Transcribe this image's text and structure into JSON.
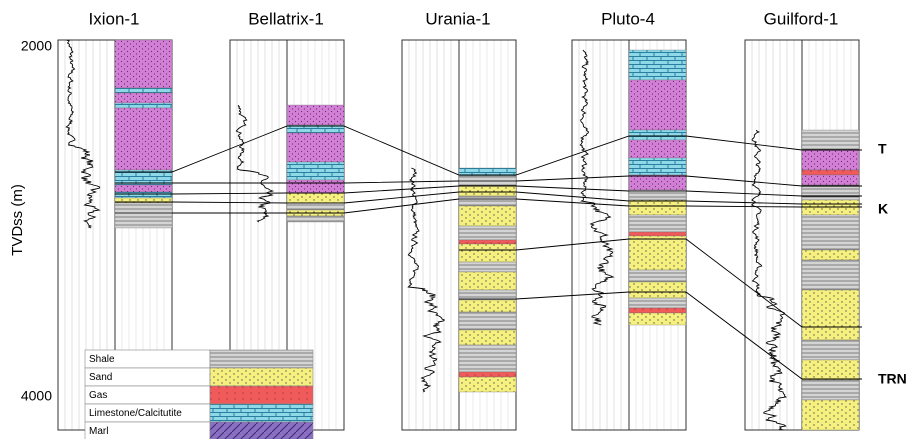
{
  "axis": {
    "label": "TVDss (m)",
    "ticks": [
      2000,
      4000
    ]
  },
  "wells": [
    {
      "name": "Ixion-1"
    },
    {
      "name": "Bellatrix-1"
    },
    {
      "name": "Urania-1"
    },
    {
      "name": "Pluto-4"
    },
    {
      "name": "Guilford-1"
    }
  ],
  "horizons": [
    "T",
    "K",
    "TRN"
  ],
  "legend": [
    "Shale",
    "Sand",
    "Gas",
    "Limestone/Calcitutite",
    "Marl"
  ]
}
